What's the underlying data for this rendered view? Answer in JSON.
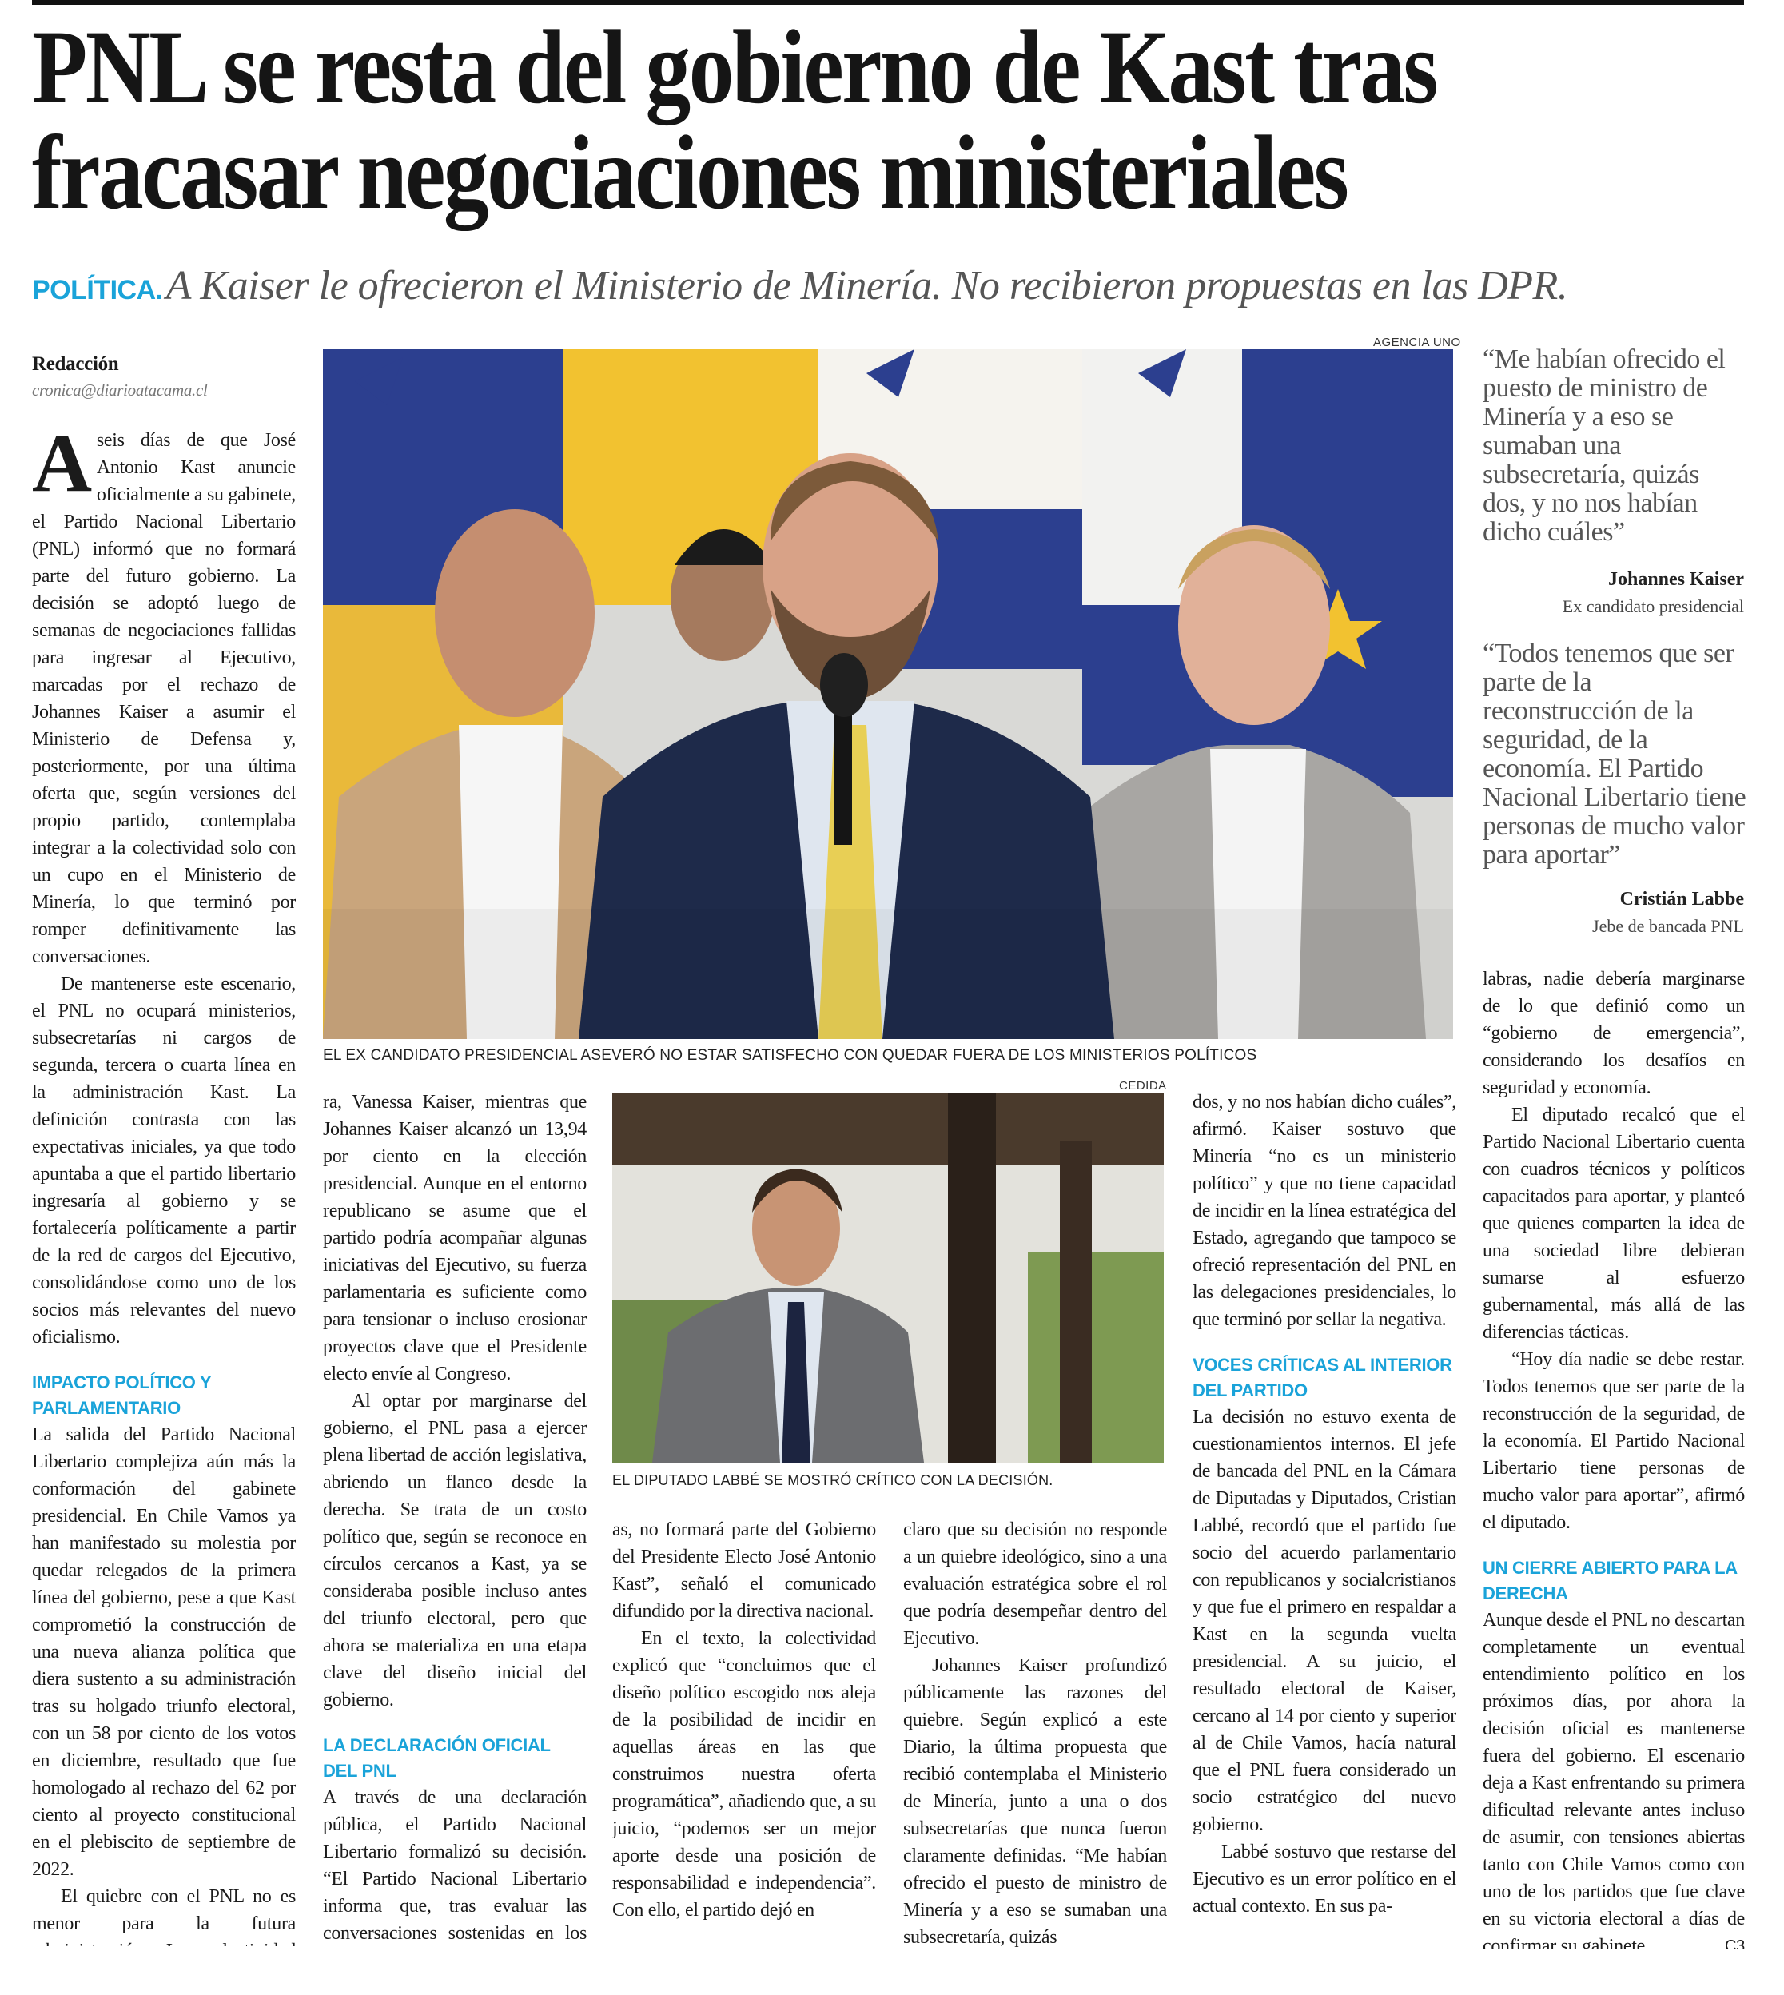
{
  "headline": {
    "line1": "PNL se resta del gobierno de Kast tras",
    "line2": "fracasar negociaciones ministeriales"
  },
  "subhead": {
    "kicker": "POLÍTICA.",
    "dek": "A Kaiser le ofrecieron el Ministerio de Minería. No recibieron propuestas en las DPR."
  },
  "accent_color": "#1aa3d9",
  "byline": {
    "author": "Redacción",
    "email": "cronica@diarioatacama.cl"
  },
  "photo_main": {
    "credit": "AGENCIA UNO",
    "caption": "EL EX CANDIDATO PRESIDENCIAL ASEVERÓ NO ESTAR SATISFECHO CON QUEDAR FUERA DE LOS MINISTERIOS POLÍTICOS"
  },
  "photo_second": {
    "credit": "CEDIDA",
    "caption": "EL DIPUTADO LABBÉ SE MOSTRÓ CRÍTICO CON LA DECISIÓN."
  },
  "quotes": [
    {
      "text": "“Me habían ofrecido el puesto de ministro de Minería y a eso se sumaban una subsecretaría, quizás dos, y no nos habían dicho cuáles”",
      "name": "Johannes Kaiser",
      "role": "Ex candidato presidencial"
    },
    {
      "text": "“Todos tenemos que ser parte de la reconstrucción de la seguridad, de la economía. El Partido Nacional Libertario tiene personas de mucho valor para aportar”",
      "name": "Cristián Labbe",
      "role": "Jebe de bancada PNL"
    }
  ],
  "columns": {
    "col1": {
      "dropcap": "A",
      "p1": "seis días de que José Antonio Kast anuncie oficialmente a su gabinete, el Partido Nacional Libertario (PNL) informó que no formará parte del futuro gobierno. La decisión se adoptó luego de semanas de negociaciones fallidas para ingresar al Ejecutivo, marcadas por el rechazo de Johannes Kaiser a asumir el Ministerio de Defensa y, posteriormente, por una última oferta que, según versiones del propio partido, contemplaba integrar a la colectividad solo con un cupo en el Ministerio de Minería, lo que terminó por romper definitivamente las conversaciones.",
      "p2": "De mantenerse este escenario, el PNL no ocupará ministerios, subsecretarías ni cargos de segunda, tercera o cuarta línea en la administración Kast. La definición contrasta con las expectativas iniciales, ya que todo apuntaba a que el partido libertario ingresaría al gobierno y se fortalecería políticamente a partir de la red de cargos del Ejecutivo, consolidándose como uno de los socios más relevantes del nuevo oficialismo.",
      "heading": "IMPACTO POLÍTICO Y PARLAMENTARIO",
      "p3": "La salida del Partido Nacional Libertario complejiza aún más la conformación del gabinete presidencial. En Chile Vamos ya han manifestado su molestia por quedar relegados de la primera línea del gobierno, pese a que Kast comprometió la construcción de una nueva alianza política que diera sustento a su administración tras su holgado triunfo electoral, con un 58 por ciento de los votos en diciembre, resultado que fue homologado al rechazo del 62 por ciento al proyecto constitucional en el plebiscito de septiembre de 2022.",
      "p4": "El quiebre con el PNL no es menor para la futura administración. La colectividad logró elegir a ocho diputados y a una senado-"
    },
    "col2": {
      "p1": "ra, Vanessa Kaiser, mientras que Johannes Kaiser alcanzó un 13,94 por ciento en la elección presidencial. Aunque en el entorno republicano se asume que el partido podría acompañar algunas iniciativas del Ejecutivo, su fuerza parlamentaria es suficiente como para tensionar o incluso erosionar proyectos clave que el Presidente electo envíe al Congreso.",
      "p2": "Al optar por marginarse del gobierno, el PNL pasa a ejercer plena libertad de acción legislativa, abriendo un flanco desde la derecha. Se trata de un costo político que, según se reconoce en círculos cercanos a Kast, ya se consideraba posible incluso antes del triunfo electoral, pero que ahora se materializa en una etapa clave del diseño inicial del gobierno.",
      "heading": "LA DECLARACIÓN OFICIAL DEL PNL",
      "p3": "A través de una declaración pública, el Partido Nacional Libertario formalizó su decisión. “El Partido Nacional Libertario informa que, tras evaluar las conversaciones sostenidas en los últimos dí-"
    },
    "col3": {
      "p1": "as, no formará parte del Gobierno del Presidente Electo José Antonio Kast”, señaló el comunicado difundido por la directiva nacional.",
      "p2": "En el texto, la colectividad explicó que “concluimos que el diseño político escogido nos aleja de la posibilidad de incidir en aquellas áreas en las que construimos nuestra oferta programática”, añadiendo que, a su juicio, “podemos ser un mejor aporte desde una posición de responsabilidad e independencia”. Con ello, el partido dejó en"
    },
    "col4": {
      "p1": "claro que su decisión no responde a un quiebre ideológico, sino a una evaluación estratégica sobre el rol que podría desempeñar dentro del Ejecutivo.",
      "p2": "Johannes Kaiser profundizó públicamente las razones del quiebre. Según explicó a este Diario, la última propuesta que recibió contemplaba el Ministerio de Minería, junto a una o dos subsecretarías que nunca fueron claramente definidas. “Me habían ofrecido el puesto de ministro de Minería y a eso se sumaban una subsecretaría, quizás"
    },
    "col5": {
      "p1": "dos, y no nos habían dicho cuáles”, afirmó. Kaiser sostuvo que Minería “no es un ministerio político” y que no tiene capacidad de incidir en la línea estratégica del Estado, agregando que tampoco se ofreció representación del PNL en las delegaciones presidenciales, lo que terminó por sellar la negativa.",
      "heading": "VOCES CRÍTICAS AL INTERIOR DEL PARTIDO",
      "p2": "La decisión no estuvo exenta de cuestionamientos internos. El jefe de bancada del PNL en la Cámara de Diputadas y Diputados, Cristian Labbé, recordó que el partido fue socio del acuerdo parlamentario con republicanos y socialcristianos y que fue el primero en respaldar a Kast en la segunda vuelta presidencial. A su juicio, el resultado electoral de Kaiser, cercano al 14 por ciento y superior al de Chile Vamos, hacía natural que el PNL fuera considerado un socio estratégico del nuevo gobierno.",
      "p3": "Labbé sostuvo que restarse del Ejecutivo es un error político en el actual contexto. En sus pa-"
    },
    "col6": {
      "p1": "labras, nadie debería marginarse de lo que definió como un “gobierno de emergencia”, considerando los desafíos en seguridad y economía.",
      "p2": "El diputado recalcó que el Partido Nacional Libertario cuenta con cuadros técnicos y políticos capacitados para aportar, y planteó que quienes comparten la idea de una sociedad libre debieran sumarse al esfuerzo gubernamental, más allá de las diferencias tácticas.",
      "p3": "“Hoy día nadie se debe restar. Todos tenemos que ser parte de la reconstrucción de la seguridad, de la economía. El Partido Nacional Libertario tiene personas de mucho valor para aportar”, afirmó el diputado.",
      "heading": "UN CIERRE ABIERTO PARA LA DERECHA",
      "p4": "Aunque desde el PNL no descartan completamente un eventual entendimiento político en los próximos días, por ahora la decisión oficial es mantenerse fuera del gobierno. El escenario deja a Kast enfrentando su primera dificultad relevante antes incluso de asumir, con tensiones abiertas tanto con Chile Vamos como con uno de los partidos que fue clave en su victoria electoral a días de confirmar su gabinete.",
      "endmark": "C3"
    }
  }
}
